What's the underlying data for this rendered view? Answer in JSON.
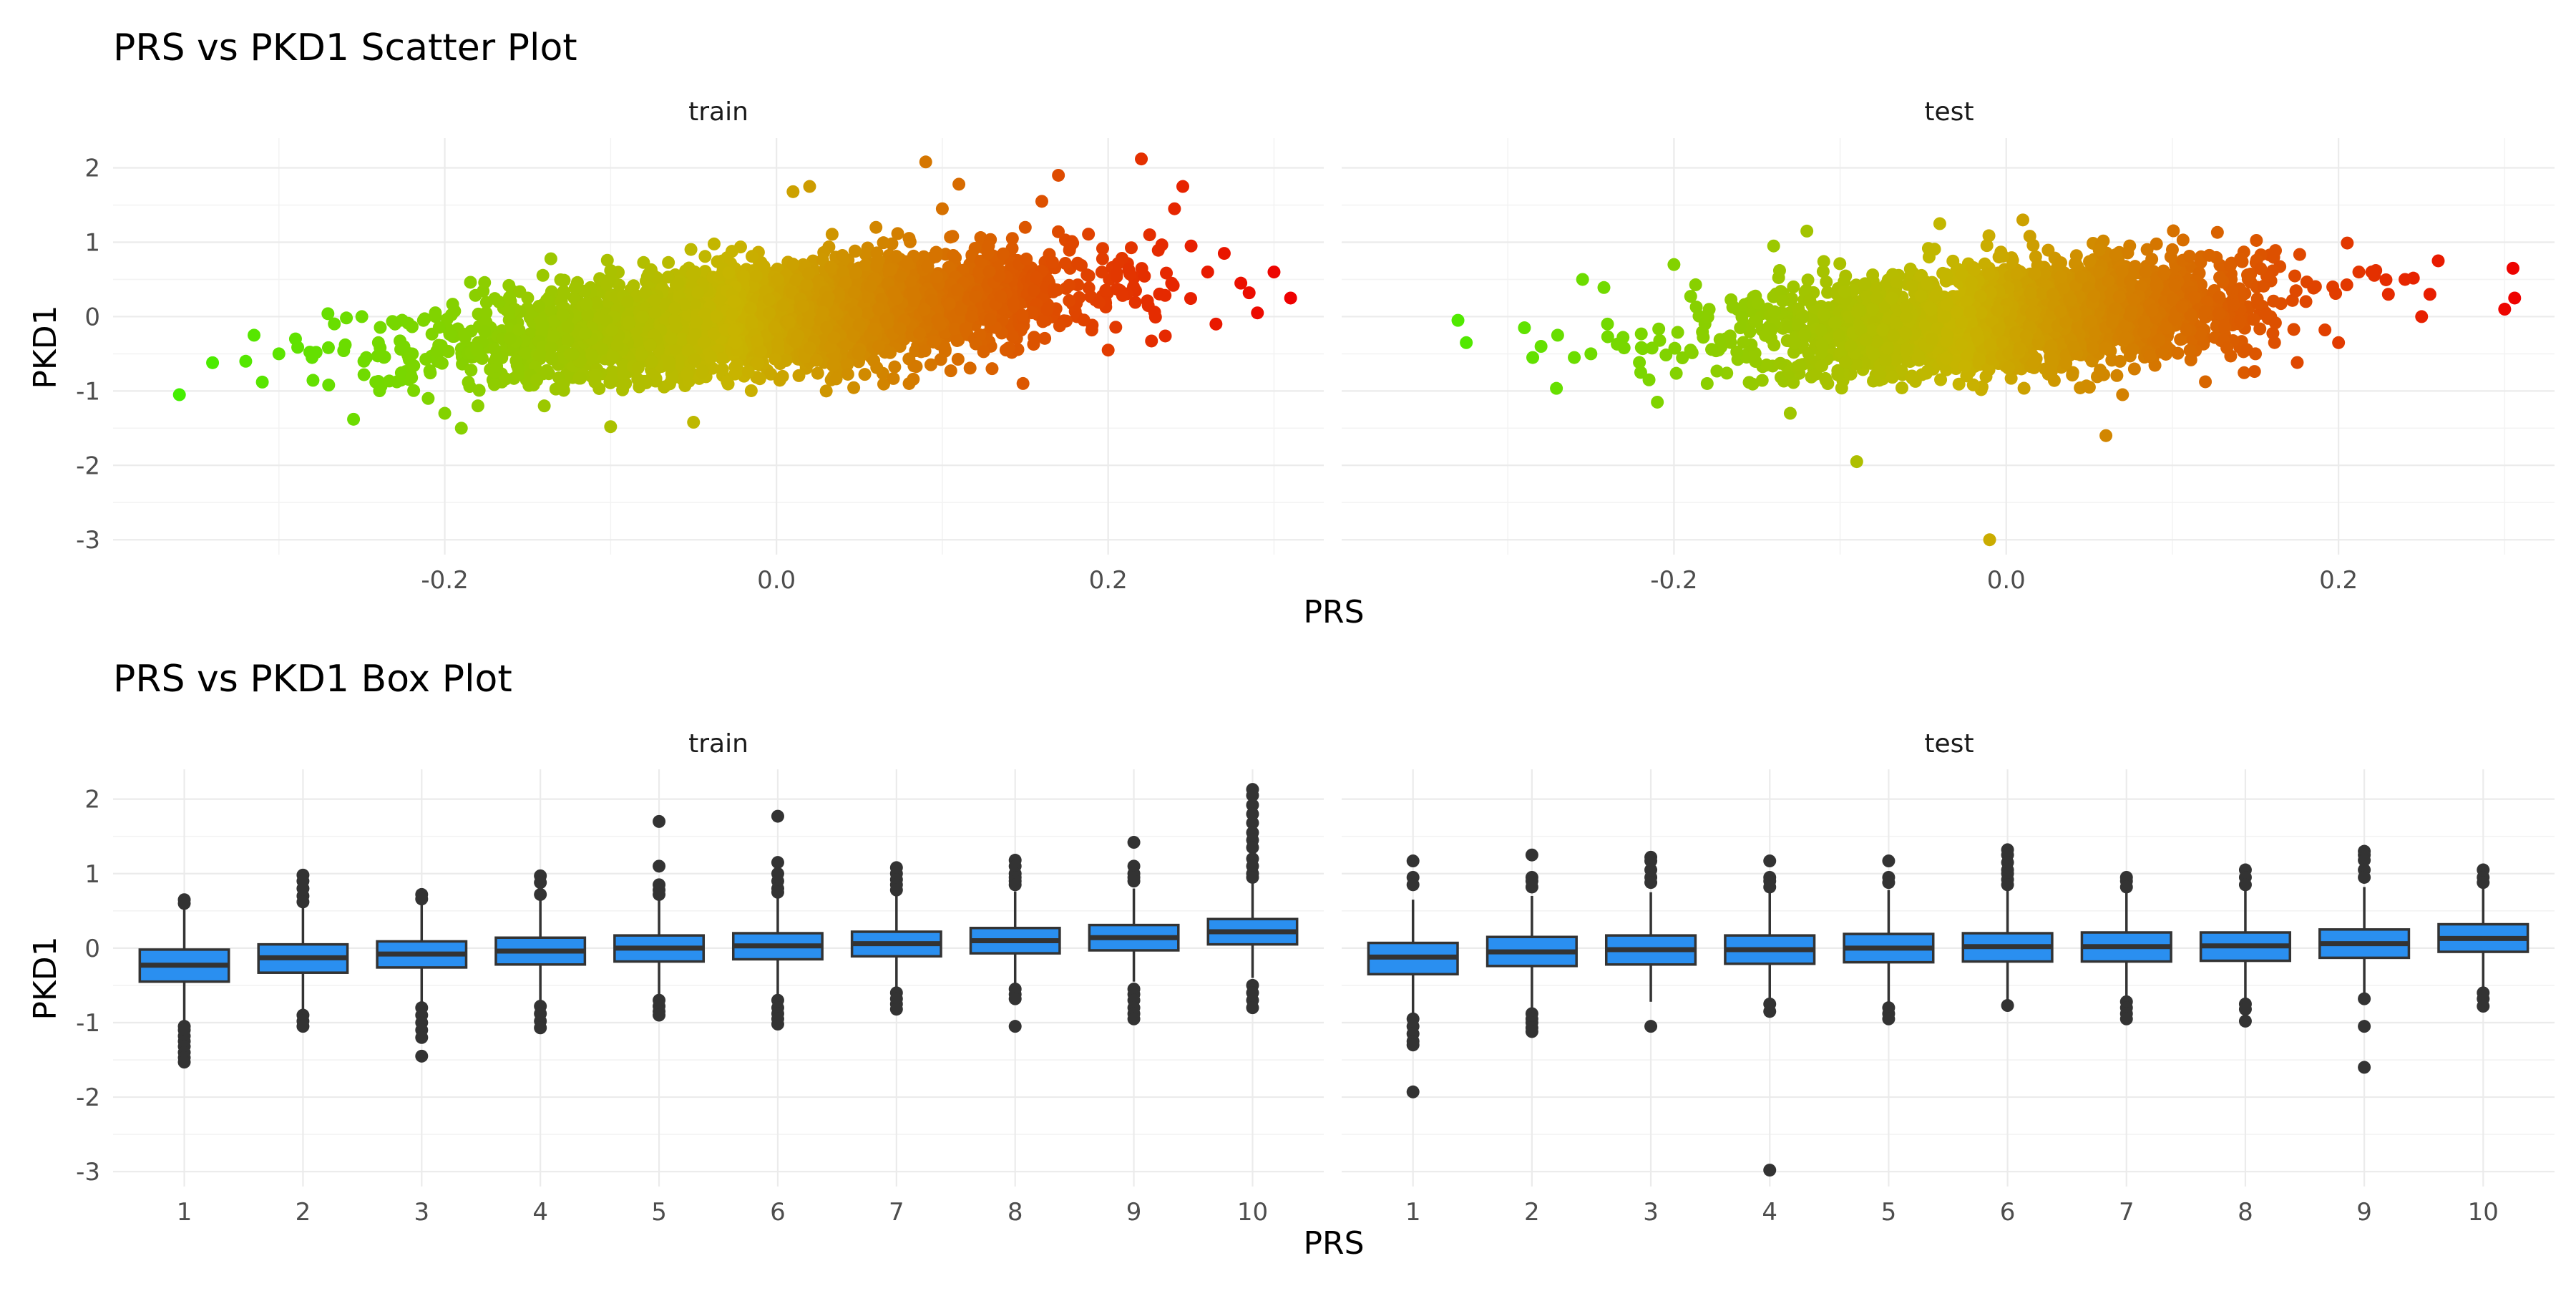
{
  "chart_data": [
    {
      "type": "scatter",
      "title": "PRS vs PKD1 Scatter Plot",
      "xlabel": "PRS",
      "ylabel": "PKD1",
      "xlim": [
        -0.4,
        0.33
      ],
      "ylim": [
        -3.2,
        2.4
      ],
      "x_ticks": [
        -0.2,
        0.0,
        0.2
      ],
      "x_tick_labels": [
        "-0.2",
        "0.0",
        "0.2"
      ],
      "y_ticks": [
        -3,
        -2,
        -1,
        0,
        1,
        2
      ],
      "y_tick_labels": [
        "-3",
        "-2",
        "-1",
        "0",
        "1",
        "2"
      ],
      "grid": true,
      "color_scale": {
        "low": "#44ee00",
        "mid": "#c8b400",
        "high": "#ee0000",
        "domain": [
          -0.36,
          0.31
        ]
      },
      "facets": [
        {
          "label": "train",
          "points": [
            [
              -0.36,
              -1.05
            ],
            [
              -0.34,
              -0.62
            ],
            [
              -0.32,
              -0.6
            ],
            [
              -0.315,
              -0.25
            ],
            [
              -0.31,
              -0.88
            ],
            [
              -0.3,
              -0.5
            ],
            [
              -0.29,
              -0.3
            ],
            [
              -0.28,
              -0.55
            ],
            [
              -0.27,
              -0.92
            ],
            [
              -0.26,
              -0.38
            ],
            [
              -0.255,
              -1.38
            ],
            [
              -0.25,
              0.0
            ],
            [
              -0.24,
              -0.35
            ],
            [
              -0.23,
              -0.1
            ],
            [
              -0.22,
              -0.82
            ],
            [
              -0.21,
              -1.1
            ],
            [
              -0.2,
              -1.3
            ],
            [
              -0.19,
              -1.5
            ],
            [
              -0.18,
              -1.2
            ],
            [
              -0.15,
              0.25
            ],
            [
              -0.14,
              -1.2
            ],
            [
              -0.1,
              -1.48
            ],
            [
              -0.1,
              0.62
            ],
            [
              -0.05,
              -1.42
            ],
            [
              -0.02,
              0.55
            ],
            [
              0.01,
              1.68
            ],
            [
              0.02,
              1.75
            ],
            [
              0.03,
              -1.0
            ],
            [
              0.06,
              1.2
            ],
            [
              0.08,
              -0.9
            ],
            [
              0.09,
              2.08
            ],
            [
              0.1,
              1.45
            ],
            [
              0.11,
              1.78
            ],
            [
              0.13,
              -0.7
            ],
            [
              0.15,
              1.2
            ],
            [
              0.16,
              1.55
            ],
            [
              0.17,
              1.9
            ],
            [
              0.2,
              -0.45
            ],
            [
              0.22,
              2.12
            ],
            [
              0.225,
              1.1
            ],
            [
              0.24,
              1.45
            ],
            [
              0.245,
              1.75
            ],
            [
              0.25,
              0.95
            ],
            [
              0.26,
              0.6
            ],
            [
              0.265,
              -0.1
            ],
            [
              0.27,
              0.85
            ],
            [
              0.28,
              0.45
            ],
            [
              0.285,
              0.32
            ],
            [
              0.29,
              0.05
            ],
            [
              0.3,
              0.6
            ],
            [
              0.31,
              0.25
            ]
          ],
          "cloud": {
            "x_mean": 0.0,
            "x_sd": 0.09,
            "slope": 2.0,
            "noise_sd": 0.35,
            "n": 3500
          }
        },
        {
          "label": "test",
          "points": [
            [
              -0.33,
              -0.05
            ],
            [
              -0.325,
              -0.35
            ],
            [
              -0.29,
              -0.15
            ],
            [
              -0.285,
              -0.55
            ],
            [
              -0.28,
              -0.4
            ],
            [
              -0.27,
              -0.25
            ],
            [
              -0.26,
              -0.55
            ],
            [
              -0.255,
              0.5
            ],
            [
              -0.25,
              -0.5
            ],
            [
              -0.24,
              -0.1
            ],
            [
              -0.23,
              -0.42
            ],
            [
              -0.22,
              -0.75
            ],
            [
              -0.215,
              -0.85
            ],
            [
              -0.21,
              -1.15
            ],
            [
              -0.2,
              0.7
            ],
            [
              -0.19,
              -0.45
            ],
            [
              -0.18,
              -0.9
            ],
            [
              -0.16,
              -0.15
            ],
            [
              -0.14,
              0.95
            ],
            [
              -0.13,
              -1.3
            ],
            [
              -0.12,
              1.15
            ],
            [
              -0.09,
              -1.95
            ],
            [
              -0.04,
              1.25
            ],
            [
              -0.01,
              -3.0
            ],
            [
              0.01,
              1.3
            ],
            [
              0.06,
              -1.6
            ],
            [
              0.07,
              -1.05
            ],
            [
              0.1,
              0.9
            ],
            [
              0.15,
              -0.5
            ],
            [
              0.2,
              -0.35
            ],
            [
              0.22,
              0.6
            ],
            [
              0.23,
              0.3
            ],
            [
              0.24,
              0.5
            ],
            [
              0.25,
              0.0
            ],
            [
              0.255,
              0.3
            ],
            [
              0.26,
              0.75
            ],
            [
              0.3,
              0.1
            ],
            [
              0.305,
              0.65
            ],
            [
              0.306,
              0.25
            ]
          ],
          "cloud": {
            "x_mean": 0.0,
            "x_sd": 0.075,
            "slope": 1.6,
            "noise_sd": 0.36,
            "n": 2400
          }
        }
      ]
    },
    {
      "type": "box",
      "title": "PRS vs PKD1 Box Plot",
      "xlabel": "PRS",
      "ylabel": "PKD1",
      "categories": [
        "1",
        "2",
        "3",
        "4",
        "5",
        "6",
        "7",
        "8",
        "9",
        "10"
      ],
      "ylim": [
        -3.2,
        2.4
      ],
      "y_ticks": [
        -3,
        -2,
        -1,
        0,
        1,
        2
      ],
      "y_tick_labels": [
        "-3",
        "-2",
        "-1",
        "0",
        "1",
        "2"
      ],
      "grid": true,
      "box_fill": "#2a8ff0",
      "box_stroke": "#333333",
      "facets": [
        {
          "label": "train",
          "boxes": [
            {
              "q1": -0.45,
              "median": -0.23,
              "q3": -0.02,
              "low": -1.0,
              "high": 0.58,
              "outliers": [
                0.65,
                0.6,
                -1.05,
                -1.1,
                -1.18,
                -1.25,
                -1.32,
                -1.4,
                -1.47,
                -1.53
              ]
            },
            {
              "q1": -0.33,
              "median": -0.13,
              "q3": 0.05,
              "low": -0.88,
              "high": 0.56,
              "outliers": [
                0.98,
                0.9,
                0.8,
                0.7,
                0.62,
                -0.9,
                -0.98,
                -1.05
              ]
            },
            {
              "q1": -0.26,
              "median": -0.08,
              "q3": 0.09,
              "low": -0.78,
              "high": 0.62,
              "outliers": [
                0.72,
                0.66,
                -0.8,
                -0.9,
                -1.0,
                -1.1,
                -1.2,
                -1.45
              ]
            },
            {
              "q1": -0.22,
              "median": -0.04,
              "q3": 0.14,
              "low": -0.72,
              "high": 0.66,
              "outliers": [
                0.97,
                0.88,
                0.72,
                -0.78,
                -0.88,
                -0.98,
                -1.07
              ]
            },
            {
              "q1": -0.18,
              "median": 0.0,
              "q3": 0.17,
              "low": -0.65,
              "high": 0.66,
              "outliers": [
                1.7,
                1.1,
                0.85,
                0.78,
                0.72,
                -0.7,
                -0.78,
                -0.85,
                -0.9
              ]
            },
            {
              "q1": -0.15,
              "median": 0.03,
              "q3": 0.2,
              "low": -0.63,
              "high": 0.68,
              "outliers": [
                1.77,
                1.15,
                1.0,
                0.9,
                0.8,
                0.75,
                -0.7,
                -0.8,
                -0.88,
                -0.95,
                -1.02
              ]
            },
            {
              "q1": -0.11,
              "median": 0.06,
              "q3": 0.22,
              "low": -0.55,
              "high": 0.7,
              "outliers": [
                1.08,
                1.0,
                0.92,
                0.85,
                0.78,
                -0.6,
                -0.68,
                -0.75,
                -0.82
              ]
            },
            {
              "q1": -0.07,
              "median": 0.1,
              "q3": 0.27,
              "low": -0.5,
              "high": 0.76,
              "outliers": [
                1.18,
                1.1,
                1.0,
                0.95,
                0.9,
                0.85,
                -0.55,
                -0.62,
                -0.68,
                -1.05
              ]
            },
            {
              "q1": -0.03,
              "median": 0.14,
              "q3": 0.31,
              "low": -0.45,
              "high": 0.8,
              "outliers": [
                1.42,
                1.1,
                1.0,
                0.95,
                0.9,
                -0.55,
                -0.62,
                -0.7,
                -0.8,
                -0.88,
                -0.95
              ]
            },
            {
              "q1": 0.05,
              "median": 0.22,
              "q3": 0.39,
              "low": -0.4,
              "high": 0.87,
              "outliers": [
                2.13,
                2.05,
                1.92,
                1.8,
                1.68,
                1.55,
                1.45,
                1.35,
                1.2,
                1.1,
                1.0,
                0.95,
                -0.5,
                -0.6,
                -0.7,
                -0.8
              ]
            }
          ]
        },
        {
          "label": "test",
          "boxes": [
            {
              "q1": -0.35,
              "median": -0.12,
              "q3": 0.07,
              "low": -0.92,
              "high": 0.65,
              "outliers": [
                1.17,
                0.95,
                0.85,
                -0.95,
                -1.05,
                -1.15,
                -1.25,
                -1.3,
                -1.93
              ]
            },
            {
              "q1": -0.24,
              "median": -0.05,
              "q3": 0.15,
              "low": -0.82,
              "high": 0.7,
              "outliers": [
                1.25,
                0.95,
                0.9,
                0.82,
                -0.88,
                -0.95,
                -1.0,
                -1.07,
                -1.12
              ]
            },
            {
              "q1": -0.22,
              "median": -0.02,
              "q3": 0.17,
              "low": -0.72,
              "high": 0.75,
              "outliers": [
                1.22,
                1.17,
                1.05,
                0.95,
                0.88,
                -1.05
              ]
            },
            {
              "q1": -0.21,
              "median": -0.02,
              "q3": 0.17,
              "low": -0.7,
              "high": 0.75,
              "outliers": [
                1.17,
                0.95,
                0.9,
                0.82,
                -0.75,
                -0.85,
                -2.98
              ]
            },
            {
              "q1": -0.19,
              "median": 0.0,
              "q3": 0.19,
              "low": -0.72,
              "high": 0.78,
              "outliers": [
                1.17,
                0.95,
                0.88,
                -0.8,
                -0.88,
                -0.95
              ]
            },
            {
              "q1": -0.18,
              "median": 0.02,
              "q3": 0.2,
              "low": -0.7,
              "high": 0.78,
              "outliers": [
                1.32,
                1.25,
                1.15,
                1.05,
                1.0,
                0.92,
                0.85,
                -0.77
              ]
            },
            {
              "q1": -0.18,
              "median": 0.02,
              "q3": 0.21,
              "low": -0.68,
              "high": 0.78,
              "outliers": [
                0.95,
                0.9,
                0.82,
                -0.72,
                -0.8,
                -0.88,
                -0.95
              ]
            },
            {
              "q1": -0.17,
              "median": 0.03,
              "q3": 0.21,
              "low": -0.7,
              "high": 0.78,
              "outliers": [
                1.05,
                0.95,
                0.85,
                -0.75,
                -0.82,
                -0.98
              ]
            },
            {
              "q1": -0.13,
              "median": 0.06,
              "q3": 0.25,
              "low": -0.62,
              "high": 0.82,
              "outliers": [
                1.3,
                1.25,
                1.18,
                1.05,
                0.95,
                -0.68,
                -1.05,
                -1.6
              ]
            },
            {
              "q1": -0.05,
              "median": 0.13,
              "q3": 0.32,
              "low": -0.55,
              "high": 0.85,
              "outliers": [
                1.05,
                0.95,
                0.88,
                -0.6,
                -0.68,
                -0.78
              ]
            }
          ]
        }
      ]
    }
  ]
}
